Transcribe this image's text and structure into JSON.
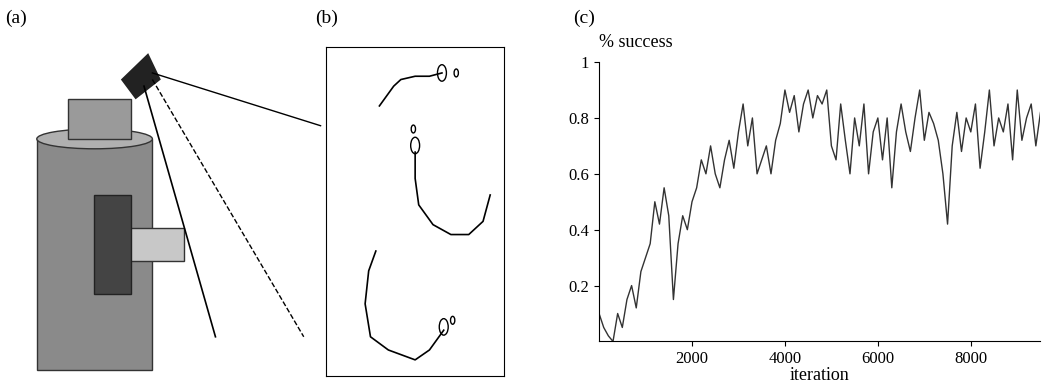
{
  "panel_labels": [
    "(a)",
    "(b)",
    "(c)"
  ],
  "chart_data": {
    "type": "line",
    "x_label": "iteration",
    "y_label": "% success",
    "x": [
      0,
      100,
      200,
      300,
      400,
      500,
      600,
      700,
      800,
      900,
      1000,
      1100,
      1200,
      1300,
      1400,
      1500,
      1600,
      1700,
      1800,
      1900,
      2000,
      2100,
      2200,
      2300,
      2400,
      2500,
      2600,
      2700,
      2800,
      2900,
      3000,
      3100,
      3200,
      3300,
      3400,
      3500,
      3600,
      3700,
      3800,
      3900,
      4000,
      4100,
      4200,
      4300,
      4400,
      4500,
      4600,
      4700,
      4800,
      4900,
      5000,
      5100,
      5200,
      5300,
      5400,
      5500,
      5600,
      5700,
      5800,
      5900,
      6000,
      6100,
      6200,
      6300,
      6400,
      6500,
      6600,
      6700,
      6800,
      6900,
      7000,
      7100,
      7200,
      7300,
      7400,
      7500,
      7600,
      7700,
      7800,
      7900,
      8000,
      8100,
      8200,
      8300,
      8400,
      8500,
      8600,
      8700,
      8800,
      8900,
      9000,
      9100,
      9200,
      9300,
      9400,
      9500
    ],
    "values": [
      0.1,
      0.05,
      0.02,
      0.0,
      0.1,
      0.05,
      0.15,
      0.2,
      0.12,
      0.25,
      0.3,
      0.35,
      0.5,
      0.42,
      0.55,
      0.45,
      0.15,
      0.35,
      0.45,
      0.4,
      0.5,
      0.55,
      0.65,
      0.6,
      0.7,
      0.6,
      0.55,
      0.65,
      0.72,
      0.62,
      0.75,
      0.85,
      0.7,
      0.8,
      0.6,
      0.65,
      0.7,
      0.6,
      0.72,
      0.78,
      0.9,
      0.82,
      0.88,
      0.75,
      0.85,
      0.9,
      0.8,
      0.88,
      0.85,
      0.9,
      0.7,
      0.65,
      0.85,
      0.72,
      0.6,
      0.8,
      0.7,
      0.85,
      0.6,
      0.75,
      0.8,
      0.65,
      0.8,
      0.55,
      0.75,
      0.85,
      0.75,
      0.68,
      0.8,
      0.9,
      0.72,
      0.82,
      0.78,
      0.72,
      0.6,
      0.42,
      0.7,
      0.82,
      0.68,
      0.8,
      0.75,
      0.85,
      0.62,
      0.75,
      0.9,
      0.7,
      0.8,
      0.75,
      0.85,
      0.65,
      0.9,
      0.72,
      0.8,
      0.85,
      0.7,
      0.82
    ],
    "color": "#333333",
    "xlim": [
      0,
      9500
    ],
    "ylim": [
      0,
      1
    ],
    "xticks": [
      2000,
      4000,
      6000,
      8000
    ],
    "yticks": [
      0.2,
      0.4,
      0.6,
      0.8,
      1
    ]
  }
}
